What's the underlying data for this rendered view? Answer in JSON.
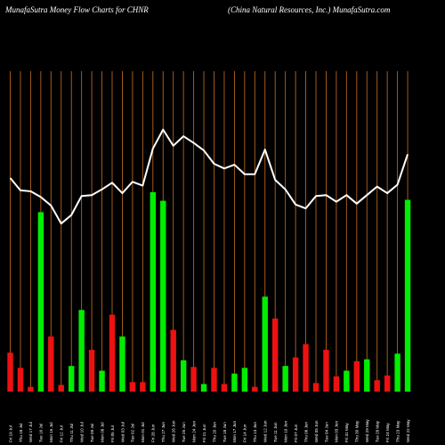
{
  "header": {
    "left": "MunafaSutra  Money Flow  Charts for CHNR",
    "right": "(China  Natural Resources,  Inc.) MunafaSutra.com"
  },
  "colors": {
    "background": "#000000",
    "grid": "#b5651d",
    "up": "#00ee00",
    "down": "#ee1111",
    "line": "#ffffff"
  },
  "chart_data": {
    "type": "bar",
    "title": "MunafaSutra  Money Flow  Charts for CHNR",
    "subtitle": "(China  Natural Resources,  Inc.) MunafaSutra.com",
    "categories": [
      "Fri 19 Jul",
      "Thu 18 Jul",
      "Wed 17 Jul",
      "Tue 16 Jul",
      "Mon 15 Jul",
      "Fri 12 Jul",
      "Thu 11 Jul",
      "Wed 10 Jul",
      "Tue 09 Jul",
      "Mon 08 Jul",
      "Fri 05 Jul",
      "Wed 03 Jul",
      "Tue 02 Jul",
      "Mon 01 Jul",
      "Fri 28 Jun",
      "Thu 27 Jun",
      "Wed 26 Jun",
      "Tue 25 Jun",
      "Mon 24 Jun",
      "Fri 21 Jun",
      "Thu 20 Jun",
      "Tue 18 Jun",
      "Mon 17 Jun",
      "Fri 14 Jun",
      "Thu 13 Jun",
      "Wed 12 Jun",
      "Tue 11 Jun",
      "Mon 10 Jun",
      "Fri 07 Jun",
      "Thu 06 Jun",
      "Wed 05 Jun",
      "Tue 04 Jun",
      "Mon 03 Jun",
      "Fri 31 May",
      "Thu 30 May",
      "Wed 29 May",
      "Tue 28 May",
      "Fri 24 May",
      "Thu 23 May",
      "Wed 22 May"
    ],
    "bar_direction": [
      "down",
      "down",
      "down",
      "up",
      "down",
      "down",
      "up",
      "up",
      "down",
      "up",
      "down",
      "up",
      "down",
      "down",
      "up",
      "up",
      "down",
      "up",
      "down",
      "up",
      "down",
      "down",
      "up",
      "up",
      "down",
      "up",
      "down",
      "up",
      "down",
      "down",
      "down",
      "down",
      "down",
      "up",
      "down",
      "up",
      "down",
      "down",
      "up",
      "up"
    ],
    "bar_values": [
      41,
      25,
      5,
      189,
      58,
      7,
      27,
      86,
      44,
      22,
      81,
      58,
      10,
      10,
      210,
      201,
      65,
      33,
      26,
      8,
      25,
      8,
      19,
      25,
      5,
      100,
      77,
      27,
      36,
      50,
      9,
      44,
      16,
      22,
      32,
      34,
      12,
      17,
      40,
      202
    ],
    "line_values": [
      225,
      212,
      211,
      205,
      196,
      177,
      186,
      206,
      207,
      213,
      220,
      209,
      221,
      217,
      256,
      276,
      259,
      269,
      262,
      254,
      240,
      235,
      239,
      229,
      229,
      255,
      223,
      213,
      197,
      193,
      206,
      207,
      200,
      207,
      198,
      207,
      216,
      209,
      218,
      250
    ],
    "ylim": [
      0,
      300
    ],
    "grid": true
  }
}
